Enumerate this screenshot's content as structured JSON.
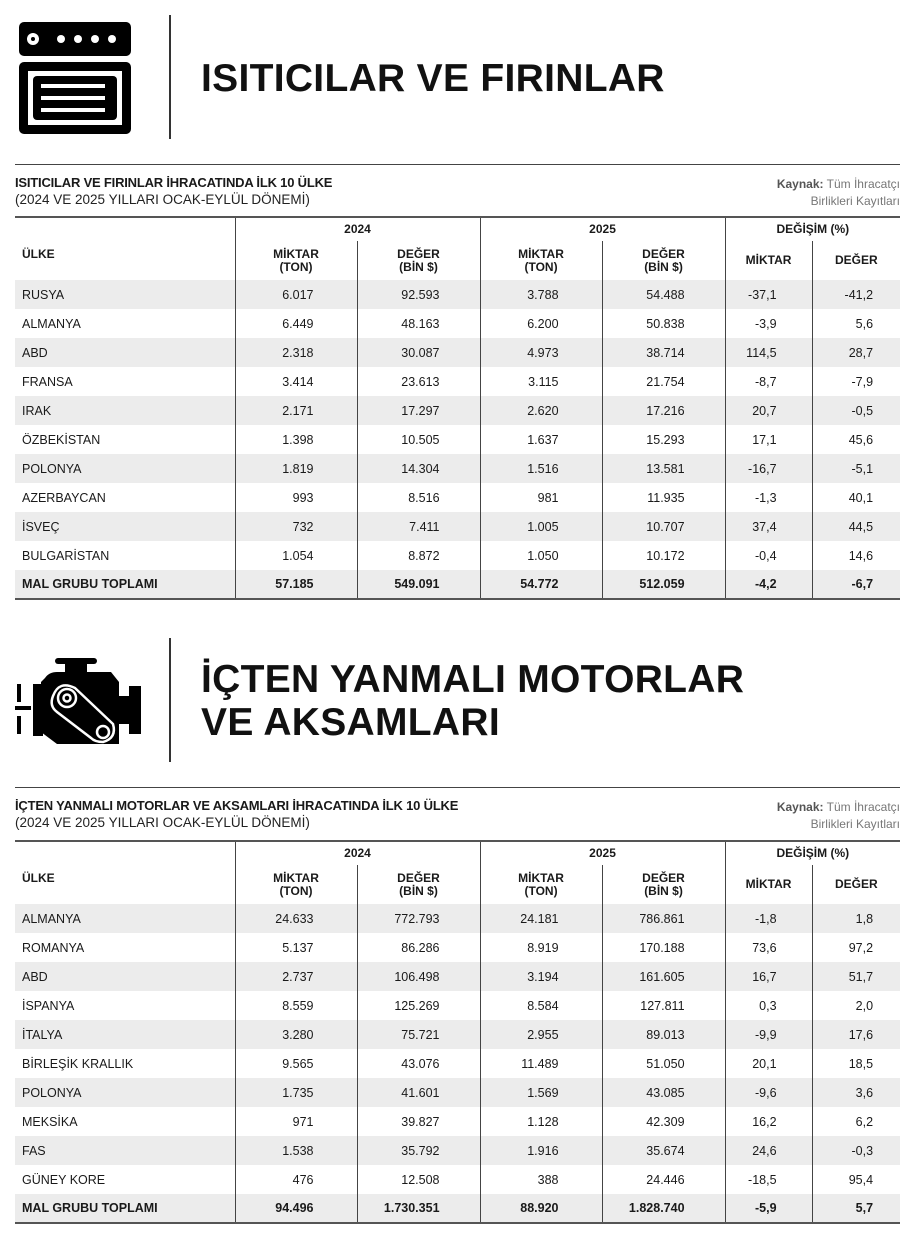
{
  "sections": [
    {
      "title_lines": [
        "ISITICILAR VE FIRINLAR"
      ],
      "icon": "oven-icon",
      "table_title": "ISITICILAR VE FIRINLAR İHRACATINDA İLK 10 ÜLKE",
      "table_subtitle": "(2024 VE 2025 YILLARI OCAK-EYLÜL DÖNEMİ)",
      "source_label": "Kaynak:",
      "source_line1": "Tüm İhracatçı",
      "source_line2": "Birlikleri Kayıtları",
      "headers": {
        "country": "ÜLKE",
        "y2024": "2024",
        "y2025": "2025",
        "change": "DEĞİŞİM (%)",
        "qty": [
          "MİKTAR",
          "(TON)"
        ],
        "val": [
          "DEĞER",
          "(BİN $)"
        ],
        "chg_qty": "MİKTAR",
        "chg_val": "DEĞER"
      },
      "rows": [
        [
          "RUSYA",
          "6.017",
          "92.593",
          "3.788",
          "54.488",
          "-37,1",
          "-41,2"
        ],
        [
          "ALMANYA",
          "6.449",
          "48.163",
          "6.200",
          "50.838",
          "-3,9",
          "5,6"
        ],
        [
          "ABD",
          "2.318",
          "30.087",
          "4.973",
          "38.714",
          "114,5",
          "28,7"
        ],
        [
          "FRANSA",
          "3.414",
          "23.613",
          "3.115",
          "21.754",
          "-8,7",
          "-7,9"
        ],
        [
          "IRAK",
          "2.171",
          "17.297",
          "2.620",
          "17.216",
          "20,7",
          "-0,5"
        ],
        [
          "ÖZBEKİSTAN",
          "1.398",
          "10.505",
          "1.637",
          "15.293",
          "17,1",
          "45,6"
        ],
        [
          "POLONYA",
          "1.819",
          "14.304",
          "1.516",
          "13.581",
          "-16,7",
          "-5,1"
        ],
        [
          "AZERBAYCAN",
          "993",
          "8.516",
          "981",
          "11.935",
          "-1,3",
          "40,1"
        ],
        [
          "İSVEÇ",
          "732",
          "7.411",
          "1.005",
          "10.707",
          "37,4",
          "44,5"
        ],
        [
          "BULGARİSTAN",
          "1.054",
          "8.872",
          "1.050",
          "10.172",
          "-0,4",
          "14,6"
        ]
      ],
      "total": [
        "MAL GRUBU TOPLAMI",
        "57.185",
        "549.091",
        "54.772",
        "512.059",
        "-4,2",
        "-6,7"
      ]
    },
    {
      "title_lines": [
        "İÇTEN YANMALI MOTORLAR",
        "VE AKSAMLARI"
      ],
      "icon": "engine-icon",
      "table_title": "İÇTEN YANMALI MOTORLAR VE AKSAMLARI İHRACATINDA İLK 10 ÜLKE",
      "table_subtitle": "(2024 VE 2025 YILLARI OCAK-EYLÜL DÖNEMİ)",
      "source_label": "Kaynak:",
      "source_line1": "Tüm İhracatçı",
      "source_line2": "Birlikleri Kayıtları",
      "headers": {
        "country": "ÜLKE",
        "y2024": "2024",
        "y2025": "2025",
        "change": "DEĞİŞİM (%)",
        "qty": [
          "MİKTAR",
          "(TON)"
        ],
        "val": [
          "DEĞER",
          "(BİN $)"
        ],
        "chg_qty": "MİKTAR",
        "chg_val": "DEĞER"
      },
      "rows": [
        [
          "ALMANYA",
          "24.633",
          "772.793",
          "24.181",
          "786.861",
          "-1,8",
          "1,8"
        ],
        [
          "ROMANYA",
          "5.137",
          "86.286",
          "8.919",
          "170.188",
          "73,6",
          "97,2"
        ],
        [
          "ABD",
          "2.737",
          "106.498",
          "3.194",
          "161.605",
          "16,7",
          "51,7"
        ],
        [
          "İSPANYA",
          "8.559",
          "125.269",
          "8.584",
          "127.811",
          "0,3",
          "2,0"
        ],
        [
          "İTALYA",
          "3.280",
          "75.721",
          "2.955",
          "89.013",
          "-9,9",
          "17,6"
        ],
        [
          "BİRLEŞİK KRALLIK",
          "9.565",
          "43.076",
          "11.489",
          "51.050",
          "20,1",
          "18,5"
        ],
        [
          "POLONYA",
          "1.735",
          "41.601",
          "1.569",
          "43.085",
          "-9,6",
          "3,6"
        ],
        [
          "MEKSİKA",
          "971",
          "39.827",
          "1.128",
          "42.309",
          "16,2",
          "6,2"
        ],
        [
          "FAS",
          "1.538",
          "35.792",
          "1.916",
          "35.674",
          "24,6",
          "-0,3"
        ],
        [
          "GÜNEY KORE",
          "476",
          "12.508",
          "388",
          "24.446",
          "-18,5",
          "95,4"
        ]
      ],
      "total": [
        "MAL GRUBU TOPLAMI",
        "94.496",
        "1.730.351",
        "88.920",
        "1.828.740",
        "-5,9",
        "5,7"
      ]
    }
  ]
}
